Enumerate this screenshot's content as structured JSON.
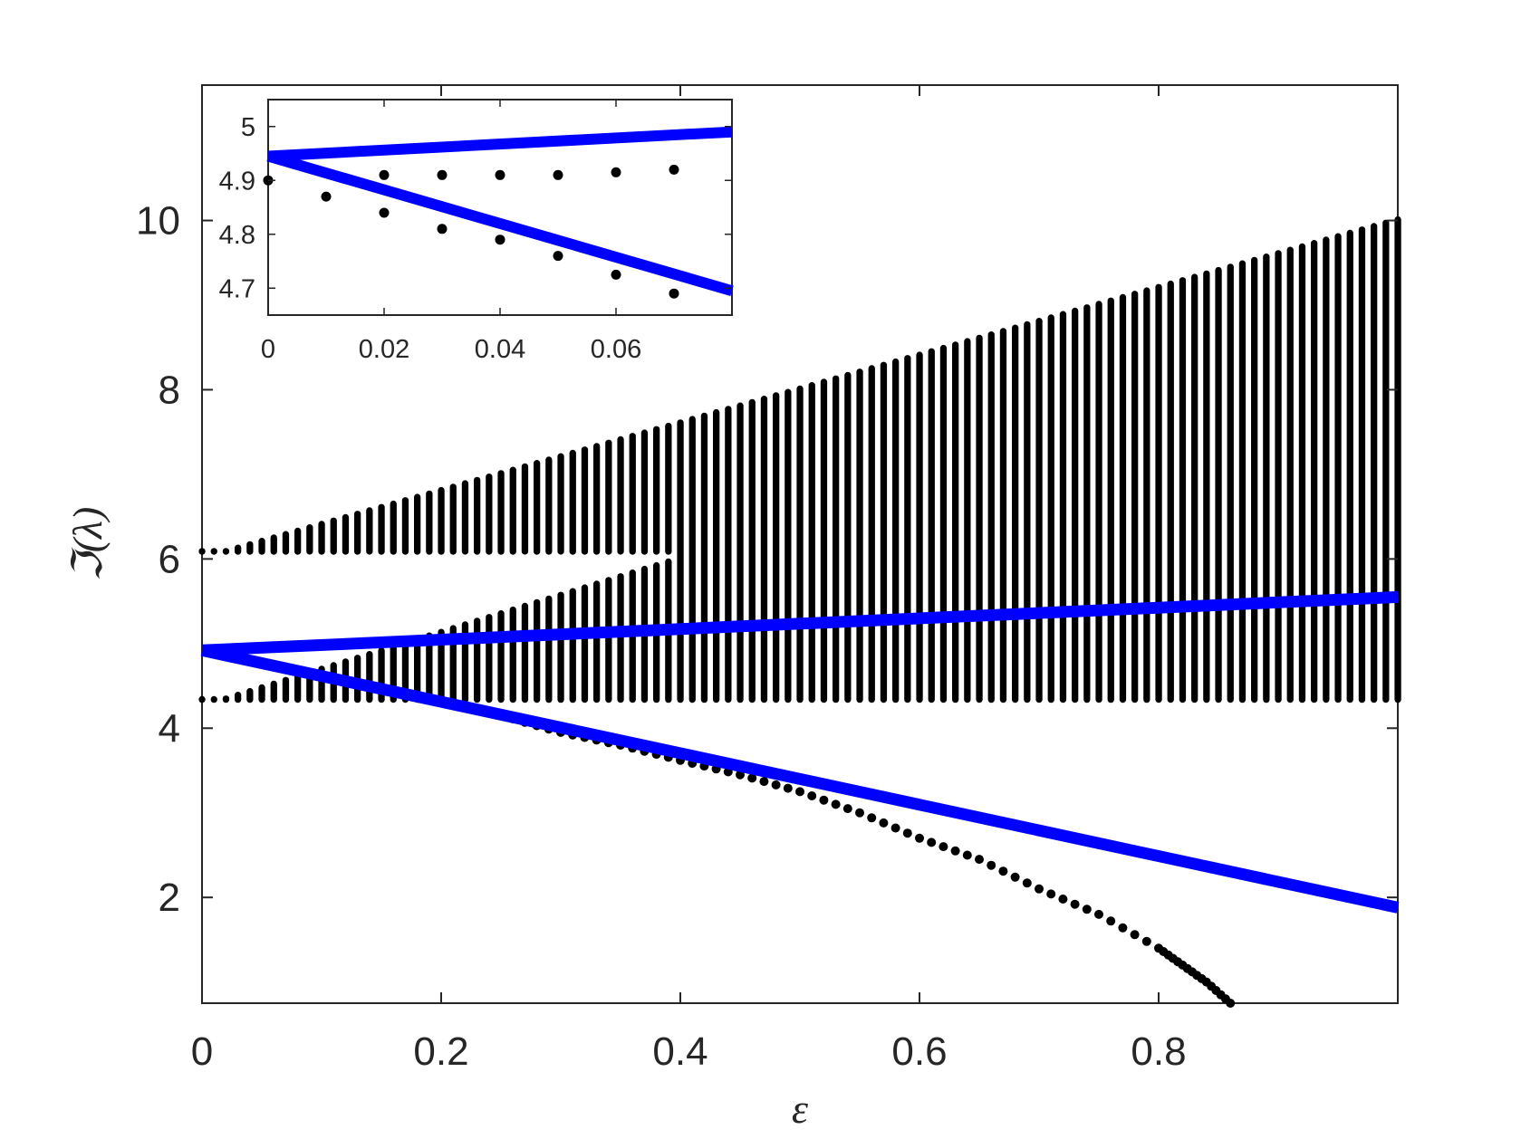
{
  "chart_data": [
    {
      "panel": "main",
      "type": "scatter",
      "xlabel": "ε",
      "ylabel": "ℑ(λ)",
      "xlim": [
        0,
        1
      ],
      "ylim": [
        0.75,
        11.6
      ],
      "xticks": [
        0,
        0.2,
        0.4,
        0.6,
        0.8
      ],
      "xtick_labels": [
        "0",
        "0.2",
        "0.4",
        "0.6",
        "0.8"
      ],
      "yticks": [
        2,
        4,
        6,
        8,
        10
      ],
      "ytick_labels": [
        "2",
        "4",
        "6",
        "8",
        "10"
      ],
      "grid": false,
      "legend": "none",
      "colors": {
        "points": "#000000",
        "lines": "#0000ff",
        "axes": "#262626"
      },
      "series": [
        {
          "kind": "band",
          "description": "continuous spectrum, dense vertical columns of black points",
          "eps_step": 0.01,
          "eps_range": [
            0,
            1
          ],
          "band_lower_bottom": 4.3,
          "band_lower_top_at_0": 4.3,
          "band_lower_top_slope": 6.5,
          "band_upper_bottom": 6.05,
          "band_upper_top_at_0": 6.05,
          "band_upper_top_slope": 4.0,
          "merge_eps": 0.4
        },
        {
          "kind": "points",
          "description": "isolated eigenvalue branch below the band",
          "x": [
            0.25,
            0.3,
            0.35,
            0.4,
            0.45,
            0.5,
            0.55,
            0.6,
            0.65,
            0.7,
            0.75,
            0.8,
            0.82,
            0.84,
            0.86
          ],
          "y": [
            4.15,
            3.95,
            3.8,
            3.62,
            3.45,
            3.25,
            3.0,
            2.7,
            2.45,
            2.1,
            1.8,
            1.4,
            1.2,
            1.0,
            0.75
          ]
        },
        {
          "kind": "line",
          "x": [
            0,
            1
          ],
          "y": [
            4.92,
            5.55
          ]
        },
        {
          "kind": "line",
          "x": [
            0,
            1
          ],
          "y": [
            4.92,
            1.88
          ]
        }
      ]
    },
    {
      "panel": "inset",
      "type": "scatter",
      "xlim": [
        0,
        0.08
      ],
      "ylim": [
        4.65,
        5.05
      ],
      "xticks": [
        0,
        0.02,
        0.04,
        0.06
      ],
      "xtick_labels": [
        "0",
        "0.02",
        "0.04",
        "0.06"
      ],
      "yticks": [
        4.7,
        4.8,
        4.9,
        5.0
      ],
      "ytick_labels": [
        "4.7",
        "4.8",
        "4.9",
        "5"
      ],
      "grid": false,
      "series": [
        {
          "kind": "points",
          "x": [
            0,
            0.02,
            0.03,
            0.04,
            0.05,
            0.06,
            0.07
          ],
          "y": [
            4.9,
            4.91,
            4.91,
            4.91,
            4.91,
            4.915,
            4.92
          ]
        },
        {
          "kind": "points",
          "x": [
            0.01,
            0.02,
            0.03,
            0.04,
            0.05,
            0.06,
            0.07
          ],
          "y": [
            4.87,
            4.84,
            4.81,
            4.79,
            4.76,
            4.725,
            4.69
          ]
        },
        {
          "kind": "line",
          "x": [
            0,
            0.08
          ],
          "y": [
            4.945,
            4.99
          ]
        },
        {
          "kind": "line",
          "x": [
            0,
            0.08
          ],
          "y": [
            4.945,
            4.695
          ]
        }
      ]
    }
  ]
}
